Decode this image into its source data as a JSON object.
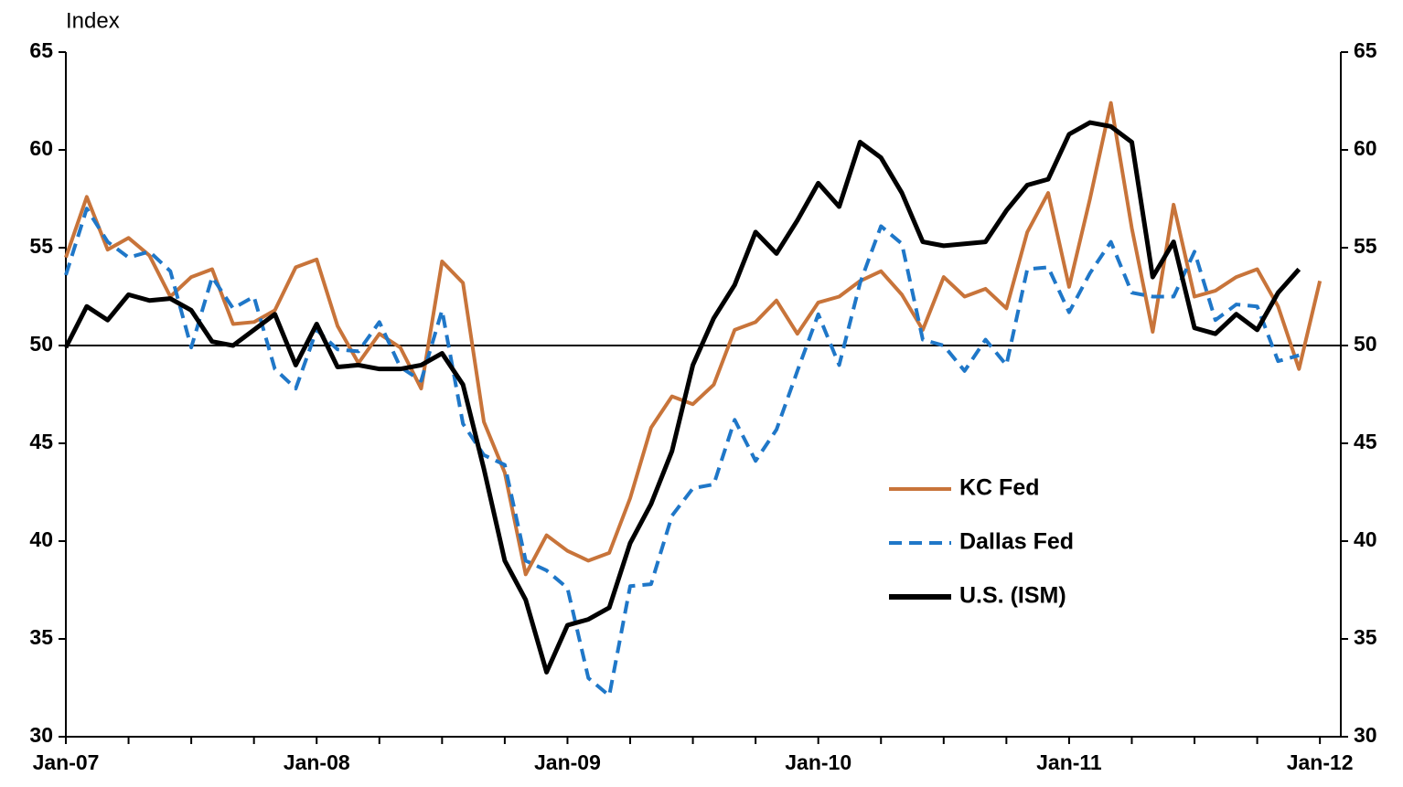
{
  "chart_data": {
    "type": "line",
    "y_axis_label": "Index",
    "categories": [
      "Jan-07",
      null,
      null,
      null,
      null,
      null,
      null,
      null,
      null,
      null,
      null,
      null,
      "Jan-08",
      null,
      null,
      null,
      null,
      null,
      null,
      null,
      null,
      null,
      null,
      null,
      "Jan-09",
      null,
      null,
      null,
      null,
      null,
      null,
      null,
      null,
      null,
      null,
      null,
      "Jan-10",
      null,
      null,
      null,
      null,
      null,
      null,
      null,
      null,
      null,
      null,
      null,
      "Jan-11",
      null,
      null,
      null,
      null,
      null,
      null,
      null,
      null,
      null,
      null,
      null,
      "Jan-12"
    ],
    "series": [
      {
        "name": "KC Fed",
        "color": "#c8743a",
        "style": "solid",
        "values": [
          54.5,
          57.6,
          54.9,
          55.5,
          54.6,
          52.5,
          53.5,
          53.9,
          51.1,
          51.2,
          51.8,
          54.0,
          54.4,
          51.0,
          49.1,
          50.6,
          49.9,
          47.8,
          54.3,
          53.2,
          46.1,
          43.5,
          38.3,
          40.3,
          39.5,
          39.0,
          39.4,
          42.2,
          45.8,
          47.4,
          47.0,
          48.0,
          50.8,
          51.2,
          52.3,
          50.6,
          52.2,
          52.5,
          53.3,
          53.8,
          52.6,
          50.8,
          53.5,
          52.5,
          52.9,
          51.9,
          55.8,
          57.8,
          53.0,
          57.5,
          62.4,
          56.0,
          50.7,
          57.2,
          52.5,
          52.8,
          53.5,
          53.9,
          52.0,
          48.8,
          53.3
        ]
      },
      {
        "name": "Dallas Fed",
        "color": "#1f77c8",
        "style": "dashed",
        "values": [
          53.6,
          57.0,
          55.3,
          54.5,
          54.8,
          53.8,
          49.9,
          53.5,
          51.9,
          52.5,
          48.8,
          47.8,
          50.8,
          49.8,
          49.7,
          51.2,
          48.9,
          48.2,
          51.8,
          46.0,
          44.4,
          43.9,
          39.0,
          38.5,
          37.6,
          33.0,
          32.1,
          37.7,
          37.8,
          41.3,
          42.7,
          42.9,
          46.2,
          44.1,
          45.7,
          48.7,
          51.6,
          49.0,
          53.2,
          56.1,
          55.2,
          50.3,
          50.0,
          48.7,
          50.3,
          49.0,
          53.9,
          54.0,
          51.7,
          53.7,
          55.3,
          52.7,
          52.5,
          52.5,
          54.8,
          51.3,
          52.1,
          52.0,
          49.2,
          49.5,
          null
        ]
      },
      {
        "name": "U.S. (ISM)",
        "color": "#000000",
        "style": "solid",
        "values": [
          49.9,
          52.0,
          51.3,
          52.6,
          52.3,
          52.4,
          51.8,
          50.2,
          50.0,
          50.8,
          51.6,
          49.0,
          51.1,
          48.9,
          49.0,
          48.8,
          48.8,
          49.0,
          49.6,
          48.0,
          43.7,
          39.0,
          37.0,
          33.3,
          35.7,
          36.0,
          36.6,
          39.9,
          41.9,
          44.6,
          49.0,
          51.4,
          53.1,
          55.8,
          54.7,
          56.4,
          58.3,
          57.1,
          60.4,
          59.6,
          57.8,
          55.3,
          55.1,
          55.2,
          55.3,
          56.9,
          58.2,
          58.5,
          60.8,
          61.4,
          61.2,
          60.4,
          53.5,
          55.3,
          50.9,
          50.6,
          51.6,
          50.8,
          52.7,
          53.9,
          null
        ]
      }
    ],
    "ylim": [
      30,
      65
    ],
    "yticks": [
      30,
      35,
      40,
      45,
      50,
      55,
      60,
      65
    ],
    "y2lim": [
      30,
      65
    ],
    "y2ticks": [
      30,
      35,
      40,
      45,
      50,
      55,
      60,
      65
    ],
    "reference_line": 50
  }
}
